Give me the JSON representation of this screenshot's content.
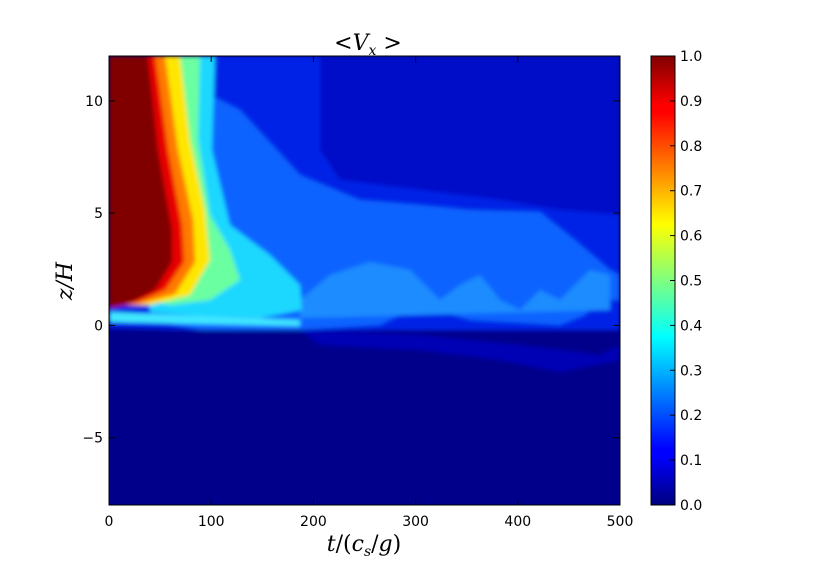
{
  "chart_data": {
    "type": "heatmap",
    "title": "<V_x >",
    "title_parts": {
      "open": "<",
      "var": "V",
      "sub": "x",
      "close": " >"
    },
    "xlabel": "t/(c_s/g)",
    "xlabel_parts": {
      "t": "t",
      "slash1": "/",
      "lpar": "(",
      "c": "c",
      "sub": "s",
      "slash2": "/",
      "g": "g",
      "rpar": ")"
    },
    "ylabel": "z/H",
    "xlim": [
      0,
      500
    ],
    "ylim": [
      -8,
      12
    ],
    "xticks": [
      0,
      100,
      200,
      300,
      400,
      500
    ],
    "yticks": [
      -5,
      0,
      5,
      10
    ],
    "colorbar": {
      "range": [
        0.0,
        1.0
      ],
      "ticks": [
        "0.0",
        "0.1",
        "0.2",
        "0.3",
        "0.4",
        "0.5",
        "0.6",
        "0.7",
        "0.8",
        "0.9",
        "1.0"
      ],
      "colormap": "jet"
    },
    "grid": false
  }
}
